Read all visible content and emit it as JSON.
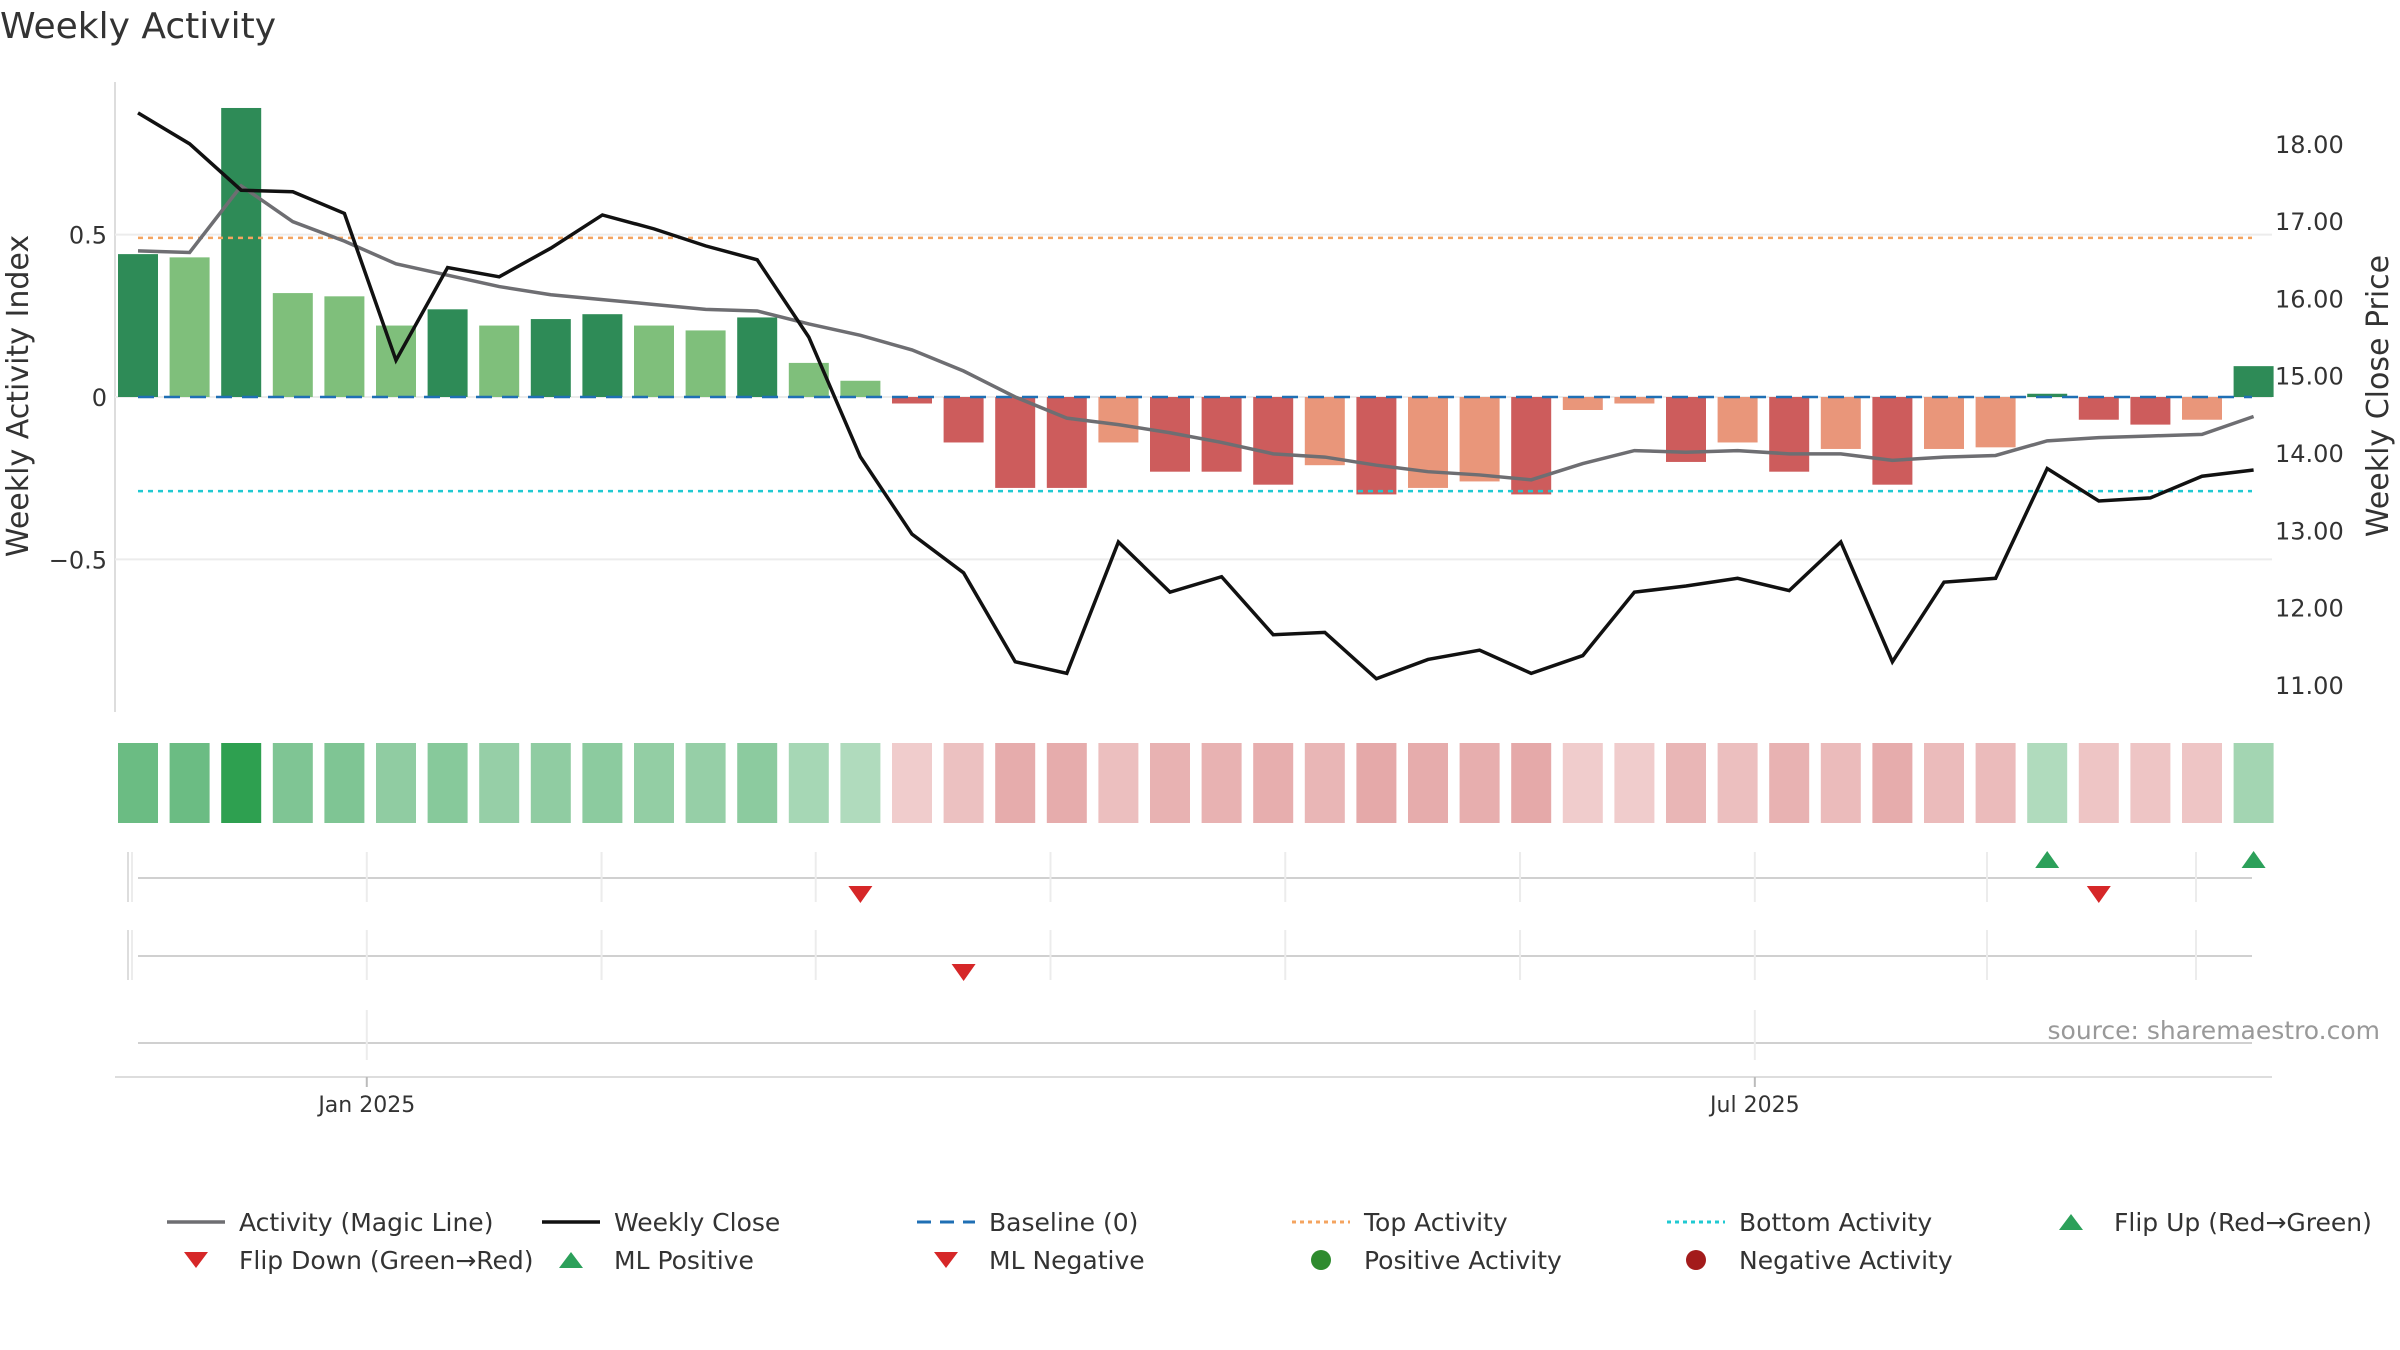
{
  "chart_title": "Weekly Activity",
  "source_text": "source: sharemaestro.com",
  "colors": {
    "green_dark": "#2e8b57",
    "green_light": "#7fbf7b",
    "red_dark": "#cd5c5c",
    "red_light": "#e9967a",
    "magic_line": "#6e6e72",
    "close_line": "#111111",
    "baseline": "#1f6fb4",
    "top_activity": "#f4a460",
    "bottom_activity": "#20c9d2",
    "flip_up": "#2ca05a",
    "flip_down": "#d62728"
  },
  "legend": [
    {
      "label": "Activity (Magic Line)",
      "symbol": "line",
      "color": "#6e6e72"
    },
    {
      "label": "Weekly Close",
      "symbol": "line",
      "color": "#111111"
    },
    {
      "label": "Baseline (0)",
      "symbol": "dash",
      "color": "#1f6fb4"
    },
    {
      "label": "Top Activity",
      "symbol": "dot",
      "color": "#f4a460"
    },
    {
      "label": "Bottom Activity",
      "symbol": "dot",
      "color": "#20c9d2"
    },
    {
      "label": "Flip Up (Red→Green)",
      "symbol": "triangle-up",
      "color": "#2ca05a"
    },
    {
      "label": "Flip Down (Green→Red)",
      "symbol": "triangle-down",
      "color": "#d62728"
    },
    {
      "label": "ML Positive",
      "symbol": "triangle-up",
      "color": "#2ca05a"
    },
    {
      "label": "ML Negative",
      "symbol": "triangle-down",
      "color": "#d62728"
    },
    {
      "label": "Positive Activity",
      "symbol": "circle",
      "color": "#2e8b2e"
    },
    {
      "label": "Negative Activity",
      "symbol": "circle",
      "color": "#a31b1b"
    }
  ],
  "chart_data": {
    "type": "bar",
    "title": "Weekly Activity",
    "x_ticks": [
      "Jan 2025",
      "Jul 2025"
    ],
    "y_left": {
      "label": "Weekly Activity Index",
      "ticks": [
        0.5,
        0,
        -0.5
      ],
      "tick_labels": [
        "0.5",
        "0",
        "−0.5"
      ],
      "range": [
        -0.97,
        0.97
      ]
    },
    "y_right": {
      "label": "Weekly Close Price",
      "ticks": [
        11,
        12,
        13,
        14,
        15,
        16,
        17,
        18
      ],
      "tick_labels": [
        "11.00",
        "12.00",
        "13.00",
        "14.00",
        "15.00",
        "16.00",
        "17.00",
        "18.00"
      ],
      "range": [
        10.65,
        18.8
      ]
    },
    "top_activity": 0.49,
    "bottom_activity": -0.29,
    "baseline": 0,
    "grid": "horizontal",
    "activity": [
      0.44,
      0.43,
      0.89,
      0.32,
      0.31,
      0.22,
      0.27,
      0.22,
      0.24,
      0.255,
      0.22,
      0.205,
      0.245,
      0.105,
      0.05,
      -0.02,
      -0.14,
      -0.28,
      -0.28,
      -0.14,
      -0.23,
      -0.23,
      -0.27,
      -0.21,
      -0.3,
      -0.28,
      -0.26,
      -0.3,
      -0.04,
      -0.02,
      -0.2,
      -0.14,
      -0.23,
      -0.16,
      -0.27,
      -0.16,
      -0.155,
      0.01,
      -0.07,
      -0.085,
      -0.07,
      0.095
    ],
    "bar_shade": [
      "dark",
      "light",
      "dark",
      "light",
      "light",
      "light",
      "dark",
      "light",
      "dark",
      "dark",
      "light",
      "light",
      "dark",
      "light",
      "light",
      "dark",
      "dark",
      "dark",
      "dark",
      "light",
      "dark",
      "dark",
      "dark",
      "light",
      "dark",
      "light",
      "light",
      "dark",
      "light",
      "light",
      "dark",
      "light",
      "dark",
      "light",
      "dark",
      "light",
      "light",
      "dark",
      "dark",
      "dark",
      "light",
      "dark"
    ],
    "magic_line": [
      0.45,
      0.445,
      0.65,
      0.54,
      0.48,
      0.41,
      0.375,
      0.34,
      0.315,
      0.3,
      0.285,
      0.27,
      0.265,
      0.225,
      0.19,
      0.145,
      0.08,
      0.0,
      -0.065,
      -0.085,
      -0.11,
      -0.14,
      -0.175,
      -0.185,
      -0.21,
      -0.23,
      -0.24,
      -0.255,
      -0.205,
      -0.165,
      -0.17,
      -0.165,
      -0.175,
      -0.175,
      -0.195,
      -0.185,
      -0.18,
      -0.135,
      -0.125,
      -0.12,
      -0.115,
      -0.06
    ],
    "weekly_close": [
      18.4,
      18.0,
      17.4,
      17.38,
      17.1,
      15.2,
      16.4,
      16.28,
      16.65,
      17.08,
      16.9,
      16.68,
      16.5,
      15.5,
      13.95,
      12.95,
      12.45,
      11.3,
      11.15,
      12.85,
      12.2,
      12.4,
      11.65,
      11.68,
      11.08,
      11.33,
      11.45,
      11.15,
      11.38,
      12.2,
      12.28,
      12.38,
      12.22,
      12.85,
      11.3,
      12.33,
      12.38,
      13.8,
      13.38,
      13.42,
      13.7,
      13.78
    ],
    "heat_strip": [
      0.62,
      0.62,
      1.0,
      0.5,
      0.5,
      0.4,
      0.45,
      0.36,
      0.4,
      0.42,
      0.38,
      0.36,
      0.42,
      0.26,
      0.2,
      -0.18,
      -0.3,
      -0.52,
      -0.52,
      -0.32,
      -0.45,
      -0.45,
      -0.5,
      -0.42,
      -0.55,
      -0.52,
      -0.5,
      -0.55,
      -0.18,
      -0.18,
      -0.42,
      -0.32,
      -0.45,
      -0.36,
      -0.52,
      -0.36,
      -0.36,
      0.2,
      -0.26,
      -0.26,
      -0.26,
      0.28
    ],
    "signal_row_1": [
      {
        "week": 14,
        "type": "flip_down"
      },
      {
        "week": 37,
        "type": "flip_up"
      },
      {
        "week": 38,
        "type": "flip_down"
      },
      {
        "week": 41,
        "type": "flip_up"
      }
    ],
    "signal_row_2": [
      {
        "week": 16,
        "type": "ml_negative"
      }
    ],
    "signal_row_3": []
  }
}
